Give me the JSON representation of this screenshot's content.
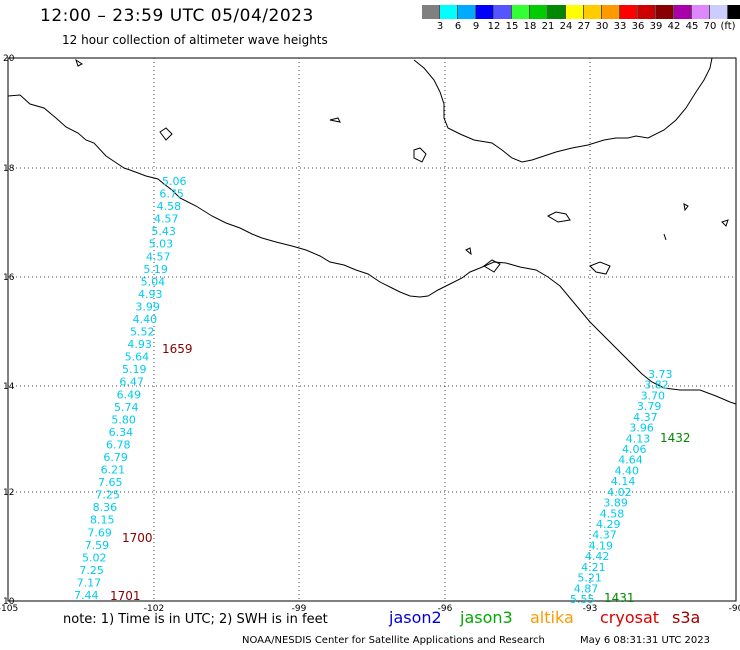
{
  "header": {
    "title": "12:00 – 23:59 UTC 05/04/2023",
    "subtitle": "12 hour collection of altimeter wave heights"
  },
  "color_scale": {
    "swatches": [
      "#808080",
      "#00ffff",
      "#00aaff",
      "#0000ff",
      "#5555ff",
      "#33ff33",
      "#00cc00",
      "#008800",
      "#ffff00",
      "#ffcc00",
      "#ff9900",
      "#ff0000",
      "#cc0000",
      "#880000",
      "#aa00aa",
      "#dd88ff",
      "#ccccff",
      "#000000"
    ],
    "labels": [
      "3",
      "6",
      "9",
      "12",
      "15",
      "18",
      "21",
      "24",
      "27",
      "30",
      "33",
      "36",
      "39",
      "42",
      "45",
      "70",
      "(ft)"
    ]
  },
  "axes": {
    "lon_labels": [
      "-105",
      "-102",
      "-99",
      "-96",
      "-93",
      "-90"
    ],
    "lat_labels": [
      "20",
      "18",
      "16",
      "14",
      "12",
      "10"
    ]
  },
  "tracks": {
    "west": {
      "values": [
        "5.06",
        "6.75",
        "4.58",
        "4.57",
        "5.43",
        "5.03",
        "4.57",
        "5.19",
        "5.04",
        "4.93",
        "3.99",
        "4.40",
        "5.52",
        "4.93",
        "5.64",
        "5.19",
        "6.47",
        "6.49",
        "5.74",
        "5.80",
        "6.34",
        "6.78",
        "6.79",
        "6.21",
        "7.65",
        "7.25",
        "8.36",
        "8.15",
        "7.69",
        "7.59",
        "5.02",
        "7.25",
        "7.17",
        "7.44"
      ],
      "color": "#00ccee"
    },
    "east": {
      "values": [
        "3.73",
        "3.82",
        "3.70",
        "3.79",
        "4.37",
        "3.96",
        "4.13",
        "4.06",
        "4.64",
        "4.40",
        "4.14",
        "4.02",
        "3.89",
        "4.58",
        "4.29",
        "4.37",
        "4.19",
        "4.42",
        "4.21",
        "5.21",
        "4.87",
        "5.55"
      ],
      "color": "#00ccee"
    }
  },
  "time_labels": [
    {
      "text": "1659",
      "color": "#880000"
    },
    {
      "text": "1700",
      "color": "#880000"
    },
    {
      "text": "1701",
      "color": "#880000"
    },
    {
      "text": "1432",
      "color": "#008800"
    },
    {
      "text": "1431",
      "color": "#008800"
    }
  ],
  "footer": {
    "note": "note:  1) Time is in UTC; 2) SWH is in feet",
    "credit": "NOAA/NESDIS Center for Satellite Applications and Research",
    "timestamp": "May  6 08:31:31 UTC 2023"
  },
  "legend": [
    {
      "text": "jason2",
      "color": "#0000dd"
    },
    {
      "text": "jason3",
      "color": "#00aa00"
    },
    {
      "text": "altika",
      "color": "#ff9900"
    },
    {
      "text": "cryosat",
      "color": "#dd0000"
    },
    {
      "text": "s3a",
      "color": "#990000"
    }
  ]
}
